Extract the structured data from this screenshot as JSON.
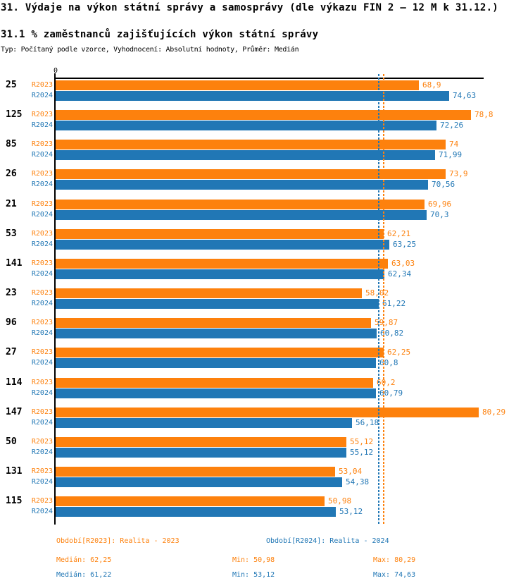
{
  "title": "31. Výdaje na výkon státní správy a samosprávy (dle výkazu FIN 2 – 12 M k 31.12.)",
  "subtitle": "31.1 % zaměstnanců zajišťujících výkon státní správy",
  "meta": "Typ: Počítaný podle vzorce, Vyhodnocení: Absolutní hodnoty, Průměr: Medián",
  "axis": {
    "zero_label": "0"
  },
  "colors": {
    "r2023": "#fd810d",
    "r2024": "#2177b5",
    "axis": "#000000"
  },
  "chart_data": {
    "type": "bar",
    "orientation": "horizontal",
    "categories": [
      "25",
      "125",
      "85",
      "26",
      "21",
      "53",
      "141",
      "23",
      "96",
      "27",
      "114",
      "147",
      "50",
      "131",
      "115"
    ],
    "series": [
      {
        "name": "R2023",
        "color": "#fd810d",
        "values": [
          68.9,
          78.8,
          74,
          73.9,
          69.96,
          62.21,
          63.03,
          58.02,
          59.87,
          62.25,
          60.2,
          80.29,
          55.12,
          53.04,
          50.98
        ],
        "labels": [
          "68,9",
          "78,8",
          "74",
          "73,9",
          "69,96",
          "62,21",
          "63,03",
          "58,02",
          "59,87",
          "62,25",
          "60,2",
          "80,29",
          "55,12",
          "53,04",
          "50,98"
        ],
        "median": 62.25
      },
      {
        "name": "R2024",
        "color": "#2177b5",
        "values": [
          74.63,
          72.26,
          71.99,
          70.56,
          70.3,
          63.25,
          62.34,
          61.22,
          60.82,
          60.8,
          60.79,
          56.18,
          55.12,
          54.38,
          53.12
        ],
        "labels": [
          "74,63",
          "72,26",
          "71,99",
          "70,56",
          "70,3",
          "63,25",
          "62,34",
          "61,22",
          "60,82",
          "60,8",
          "60,79",
          "56,18",
          "55,12",
          "54,38",
          "53,12"
        ],
        "median": 61.22
      }
    ],
    "xlim": [
      0,
      81.3
    ],
    "grid": false,
    "legend_position": "bottom",
    "median_lines": [
      {
        "series": "R2023",
        "value": 62.25,
        "style": "dashed",
        "color": "#fd810d"
      },
      {
        "series": "R2024",
        "value": 61.22,
        "style": "dashed",
        "color": "#2177b5"
      }
    ]
  },
  "footer": {
    "legend": [
      {
        "label": "Období[R2023]: Realita - 2023",
        "color": "#fd810d"
      },
      {
        "label": "Období[R2024]: Realita - 2024",
        "color": "#2177b5"
      }
    ],
    "stats": [
      {
        "median": "Medián: 62,25",
        "min": "Min: 50,98",
        "max": "Max: 80,29"
      },
      {
        "median": "Medián: 61,22",
        "min": "Min: 53,12",
        "max": "Max: 74,63"
      }
    ]
  }
}
